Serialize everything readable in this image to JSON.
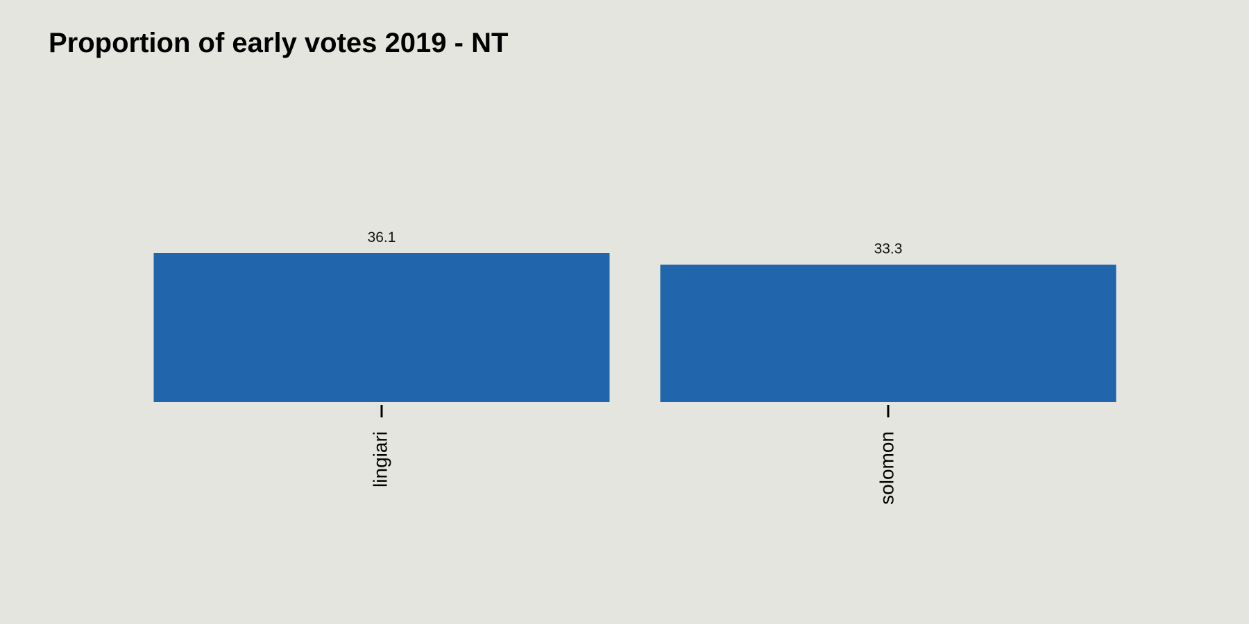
{
  "chart_data": {
    "type": "bar",
    "title": "Proportion of early votes 2019 - NT",
    "categories": [
      "lingiari",
      "solomon"
    ],
    "values": [
      36.1,
      33.3
    ],
    "data_labels": [
      "36.1",
      "33.3"
    ],
    "xlabel": "",
    "ylabel": "",
    "ylim": [
      0,
      36.1
    ],
    "grid": false,
    "legend": "none",
    "bar_color": "#2166ac",
    "background_color": "#e5e5df"
  }
}
